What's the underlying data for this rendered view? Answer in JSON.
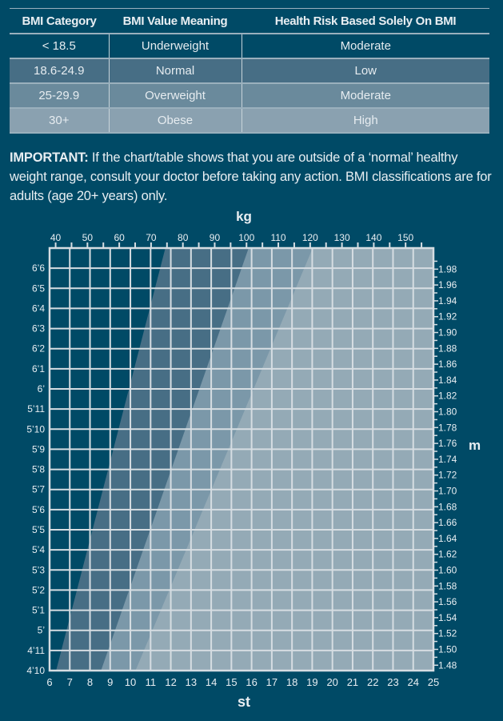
{
  "table": {
    "headers": [
      "BMI Category",
      "BMI Value Meaning",
      "Health Risk Based Solely On BMI"
    ],
    "rows": [
      [
        "< 18.5",
        "Underweight",
        "Moderate"
      ],
      [
        "18.6-24.9",
        "Normal",
        "Low"
      ],
      [
        "25-29.9",
        "Overweight",
        "Moderate"
      ],
      [
        "30+",
        "Obese",
        "High"
      ]
    ]
  },
  "note": {
    "label": "IMPORTANT:",
    "text": " If the chart/table shows that you are outside of a ‘normal’ healthy weight range, consult your doctor before taking any action. BMI classifications are for adults (age 20+ years) only."
  },
  "colors": {
    "background": "#004a66",
    "underweight": "#004a66",
    "normal": "#476e85",
    "overweight": "#7b98a9",
    "obese": "#94aab6",
    "grid": "#d6dde2"
  },
  "chart_data": {
    "type": "area",
    "title": "",
    "top_axis": {
      "label": "kg",
      "ticks": [
        40,
        50,
        60,
        70,
        80,
        90,
        100,
        110,
        120,
        130,
        140,
        150
      ],
      "range": [
        38.1,
        158.8
      ]
    },
    "bottom_axis": {
      "label": "st",
      "ticks": [
        6,
        7,
        8,
        9,
        10,
        11,
        12,
        13,
        14,
        15,
        16,
        17,
        18,
        19,
        20,
        21,
        22,
        23,
        24,
        25
      ],
      "range": [
        6,
        25
      ]
    },
    "left_axis": {
      "label": "",
      "ticks": [
        "6’6",
        "6’5",
        "6’4",
        "6’3",
        "6’2",
        "6’1",
        "6’",
        "5’11",
        "5’10",
        "5’9",
        "5’8",
        "5’7",
        "5’6",
        "5’5",
        "5’4",
        "5’3",
        "5’2",
        "5’1",
        "5’",
        "4’11",
        "4’10"
      ],
      "range_inches": [
        58,
        79
      ]
    },
    "right_axis": {
      "label": "m",
      "ticks": [
        "1.98",
        "1.96",
        "1.94",
        "1.92",
        "1.90",
        "1.88",
        "1.86",
        "1.84",
        "1.82",
        "1.80",
        "1.78",
        "1.76",
        "1.74",
        "1.72",
        "1.70",
        "1.68",
        "1.66",
        "1.64",
        "1.62",
        "1.60",
        "1.58",
        "1.56",
        "1.54",
        "1.52",
        "1.50",
        "1.48"
      ]
    },
    "bands": [
      {
        "category": "Underweight",
        "bmi_min": 0,
        "bmi_max": 18.5
      },
      {
        "category": "Normal",
        "bmi_min": 18.5,
        "bmi_max": 25
      },
      {
        "category": "Overweight",
        "bmi_min": 25,
        "bmi_max": 30
      },
      {
        "category": "Obese",
        "bmi_min": 30,
        "bmi_max": null
      }
    ],
    "grid": true
  }
}
